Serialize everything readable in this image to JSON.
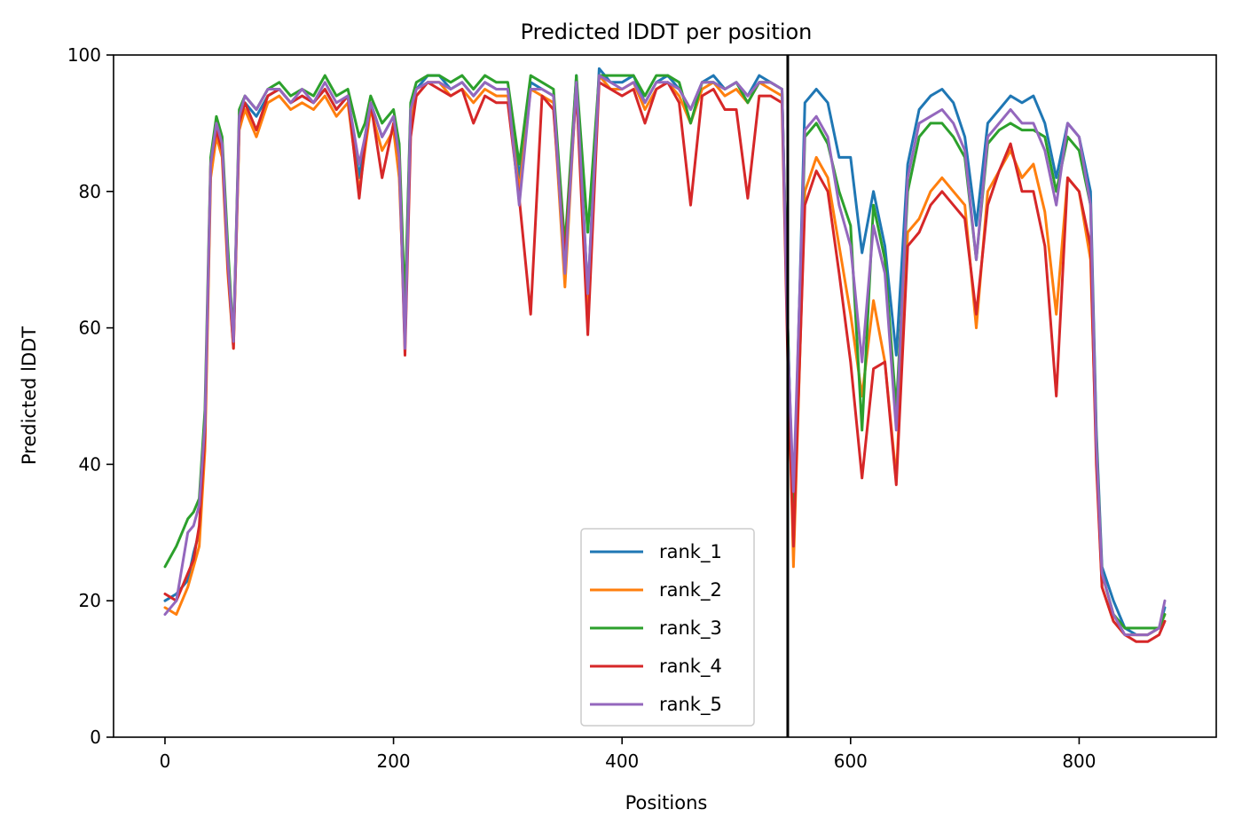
{
  "chart_data": {
    "type": "line",
    "title": "Predicted lDDT per position",
    "xlabel": "Positions",
    "ylabel": "Predicted lDDT",
    "xlim": [
      -45,
      920
    ],
    "ylim": [
      0,
      100
    ],
    "xticks": [
      0,
      200,
      400,
      600,
      800
    ],
    "yticks": [
      0,
      20,
      40,
      60,
      80,
      100
    ],
    "grid": false,
    "legend_position": "lower-center",
    "vline_x": 545,
    "x": [
      0,
      10,
      20,
      25,
      30,
      35,
      40,
      45,
      50,
      55,
      60,
      65,
      70,
      80,
      90,
      100,
      110,
      120,
      130,
      140,
      150,
      160,
      170,
      175,
      180,
      190,
      200,
      205,
      210,
      215,
      220,
      230,
      240,
      250,
      260,
      270,
      280,
      290,
      300,
      310,
      320,
      330,
      340,
      350,
      360,
      370,
      380,
      390,
      400,
      410,
      420,
      430,
      440,
      450,
      460,
      470,
      480,
      490,
      500,
      510,
      520,
      530,
      540,
      545,
      550,
      560,
      570,
      580,
      590,
      600,
      610,
      620,
      630,
      640,
      650,
      660,
      670,
      680,
      690,
      700,
      710,
      720,
      730,
      740,
      750,
      760,
      770,
      780,
      790,
      800,
      810,
      815,
      820,
      830,
      840,
      850,
      860,
      870,
      875
    ],
    "series": [
      {
        "name": "rank_1",
        "color": "#1f77b4",
        "values": [
          20,
          21,
          23,
          27,
          30,
          45,
          83,
          90,
          87,
          70,
          58,
          90,
          93,
          91,
          94,
          95,
          93,
          94,
          93,
          95,
          92,
          94,
          82,
          88,
          93,
          88,
          91,
          84,
          62,
          92,
          95,
          97,
          97,
          95,
          96,
          94,
          96,
          95,
          95,
          82,
          96,
          95,
          94,
          70,
          97,
          65,
          98,
          96,
          96,
          97,
          93,
          96,
          97,
          95,
          92,
          96,
          97,
          95,
          96,
          94,
          97,
          96,
          95,
          60,
          32,
          93,
          95,
          93,
          85,
          85,
          71,
          80,
          72,
          56,
          84,
          92,
          94,
          95,
          93,
          88,
          75,
          90,
          92,
          94,
          93,
          94,
          90,
          82,
          90,
          88,
          80,
          45,
          25,
          20,
          16,
          15,
          15,
          16,
          19
        ]
      },
      {
        "name": "rank_2",
        "color": "#ff7f0e",
        "values": [
          19,
          18,
          22,
          25,
          28,
          42,
          82,
          88,
          85,
          68,
          57,
          89,
          92,
          88,
          93,
          94,
          92,
          93,
          92,
          94,
          91,
          93,
          80,
          86,
          92,
          86,
          89,
          82,
          60,
          90,
          94,
          96,
          96,
          94,
          95,
          93,
          95,
          94,
          94,
          80,
          95,
          94,
          93,
          66,
          96,
          62,
          97,
          95,
          95,
          96,
          92,
          95,
          96,
          94,
          90,
          95,
          96,
          94,
          95,
          93,
          96,
          95,
          94,
          58,
          25,
          80,
          85,
          82,
          72,
          62,
          50,
          64,
          55,
          38,
          74,
          76,
          80,
          82,
          80,
          78,
          60,
          80,
          83,
          86,
          82,
          84,
          77,
          62,
          82,
          80,
          70,
          42,
          22,
          17,
          15,
          15,
          15,
          16,
          18
        ]
      },
      {
        "name": "rank_3",
        "color": "#2ca02c",
        "values": [
          25,
          28,
          32,
          33,
          35,
          48,
          85,
          91,
          88,
          72,
          58,
          92,
          94,
          92,
          95,
          96,
          94,
          95,
          94,
          97,
          94,
          95,
          88,
          90,
          94,
          90,
          92,
          87,
          63,
          93,
          96,
          97,
          97,
          96,
          97,
          95,
          97,
          96,
          96,
          84,
          97,
          96,
          95,
          72,
          97,
          74,
          97,
          97,
          97,
          97,
          94,
          97,
          97,
          96,
          90,
          96,
          96,
          95,
          96,
          93,
          96,
          96,
          95,
          60,
          30,
          88,
          90,
          87,
          80,
          75,
          45,
          78,
          70,
          48,
          80,
          88,
          90,
          90,
          88,
          85,
          70,
          87,
          89,
          90,
          89,
          89,
          88,
          80,
          88,
          86,
          78,
          44,
          24,
          18,
          16,
          16,
          16,
          16,
          18
        ]
      },
      {
        "name": "rank_4",
        "color": "#d62728",
        "values": [
          21,
          20,
          24,
          26,
          31,
          44,
          84,
          89,
          86,
          69,
          57,
          90,
          93,
          89,
          94,
          95,
          93,
          94,
          93,
          95,
          92,
          94,
          79,
          87,
          93,
          82,
          90,
          85,
          56,
          88,
          94,
          96,
          95,
          94,
          95,
          90,
          94,
          93,
          93,
          79,
          62,
          94,
          92,
          70,
          95,
          59,
          96,
          95,
          94,
          95,
          90,
          95,
          96,
          93,
          78,
          94,
          95,
          92,
          92,
          79,
          94,
          94,
          93,
          55,
          28,
          78,
          83,
          80,
          68,
          55,
          38,
          54,
          55,
          37,
          72,
          74,
          78,
          80,
          78,
          76,
          62,
          78,
          83,
          87,
          80,
          80,
          72,
          50,
          82,
          80,
          72,
          40,
          22,
          17,
          15,
          14,
          14,
          15,
          17
        ]
      },
      {
        "name": "rank_5",
        "color": "#9467bd",
        "values": [
          18,
          20,
          30,
          31,
          34,
          46,
          84,
          90,
          87,
          70,
          58,
          91,
          94,
          92,
          95,
          95,
          93,
          95,
          93,
          96,
          93,
          94,
          84,
          88,
          93,
          88,
          91,
          85,
          57,
          92,
          95,
          96,
          96,
          95,
          96,
          94,
          96,
          95,
          95,
          78,
          95,
          95,
          94,
          68,
          96,
          65,
          97,
          96,
          95,
          96,
          93,
          96,
          96,
          95,
          92,
          96,
          96,
          95,
          96,
          94,
          96,
          96,
          95,
          58,
          36,
          89,
          91,
          88,
          78,
          72,
          55,
          75,
          68,
          45,
          82,
          90,
          91,
          92,
          90,
          86,
          70,
          88,
          90,
          92,
          90,
          90,
          86,
          78,
          90,
          88,
          78,
          43,
          24,
          18,
          15,
          15,
          15,
          16,
          20
        ]
      }
    ]
  }
}
